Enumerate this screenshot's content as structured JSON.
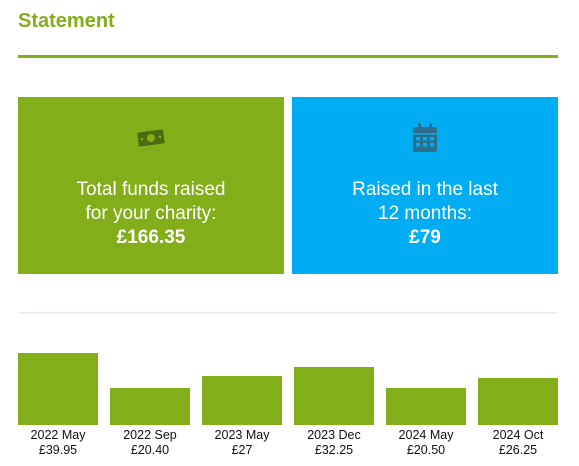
{
  "header": {
    "title": "Statement"
  },
  "cards": {
    "total": {
      "icon": "money-icon",
      "line1": "Total funds raised",
      "line2": "for your charity:",
      "amount": "£166.35",
      "color": "#82ae19"
    },
    "recent": {
      "icon": "calendar-icon",
      "line1": "Raised in the last",
      "line2": "12 months:",
      "amount": "£79",
      "color": "#00adf2"
    }
  },
  "chart_data": {
    "type": "bar",
    "categories": [
      "2022 May",
      "2022 Sep",
      "2023 May",
      "2023 Dec",
      "2024 May",
      "2024 Oct"
    ],
    "values": [
      39.95,
      20.4,
      27,
      32.25,
      20.5,
      26.25
    ],
    "value_labels": [
      "£39.95",
      "£20.40",
      "£27",
      "£32.25",
      "£20.50",
      "£26.25"
    ],
    "bar_color": "#82ae19",
    "xlabel": "",
    "ylabel": ""
  }
}
